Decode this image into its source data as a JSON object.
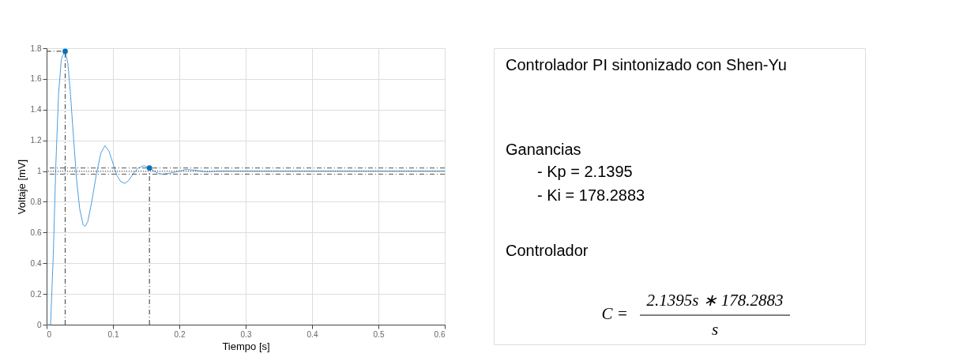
{
  "chart_data": [
    {
      "type": "line",
      "xlabel": "Tiempo [s]",
      "ylabel": "Voltaje [mV]",
      "xlim": [
        0,
        0.6
      ],
      "xticks": [
        0,
        0.1,
        0.2,
        0.3,
        0.4,
        0.5,
        0.6
      ],
      "ylim": [
        0,
        1.8
      ],
      "yticks": [
        0,
        0.2,
        0.4,
        0.6,
        0.8,
        1,
        1.2,
        1.4,
        1.6,
        1.8
      ],
      "grid": true,
      "marker": "none",
      "series": [
        {
          "type": "line",
          "color": "#4d9de0",
          "line_style": "solid",
          "x": [
            0,
            0.006,
            0.01,
            0.014,
            0.018,
            0.022,
            0.024,
            0.028,
            0.032,
            0.036,
            0.04,
            0.045,
            0.05,
            0.055,
            0.058,
            0.062,
            0.068,
            0.075,
            0.082,
            0.088,
            0.094,
            0.1,
            0.106,
            0.112,
            0.118,
            0.124,
            0.13,
            0.138,
            0.147,
            0.155,
            0.162,
            0.168,
            0.175,
            0.185,
            0.195,
            0.21,
            0.225,
            0.24,
            0.26,
            0.3,
            0.4,
            0.5,
            0.6
          ],
          "values": [
            0,
            0,
            0.45,
            1.05,
            1.5,
            1.72,
            1.75,
            1.78,
            1.7,
            1.5,
            1.25,
            0.95,
            0.75,
            0.65,
            0.64,
            0.67,
            0.8,
            0.98,
            1.12,
            1.165,
            1.13,
            1.05,
            0.97,
            0.93,
            0.92,
            0.94,
            0.98,
            1.02,
            1.035,
            1.02,
            1.0,
            0.985,
            0.98,
            0.985,
            0.995,
            1.01,
            1.005,
            0.995,
            1.0,
            1.0,
            1.0,
            1.0,
            1.0
          ]
        },
        {
          "type": "line",
          "color": "#555555",
          "line_style": "dashed",
          "x": [
            0.028,
            0.028,
            0
          ],
          "values": [
            0,
            1.78,
            1.78
          ]
        },
        {
          "type": "line",
          "color": "#555555",
          "line_style": "dashed",
          "x": [
            0.155,
            0.155
          ],
          "values": [
            0,
            1.02
          ]
        },
        {
          "type": "scatter",
          "color": "#0072bd",
          "marker": "circle",
          "x": [
            0.028,
            0.155
          ],
          "values": [
            1.78,
            1.02
          ]
        }
      ],
      "ref_lines": [
        {
          "axis": "y",
          "value": 1.02,
          "color": "#555555",
          "line_style": "dashed"
        },
        {
          "axis": "y",
          "value": 1,
          "color": "#555555",
          "line_style": "dotted"
        },
        {
          "axis": "y",
          "value": 0.98,
          "color": "#555555",
          "line_style": "dashed"
        }
      ]
    },
    {
      "type": "other",
      "annotations": [
        "Controlador PI sintonizado con Shen-Yu",
        "Ganancias",
        "-      Kp = 2.1395",
        "-      Ki = 178.2883",
        "Controlador",
        "C =",
        "2.1395s ∗ 178.2883",
        "s"
      ]
    }
  ]
}
